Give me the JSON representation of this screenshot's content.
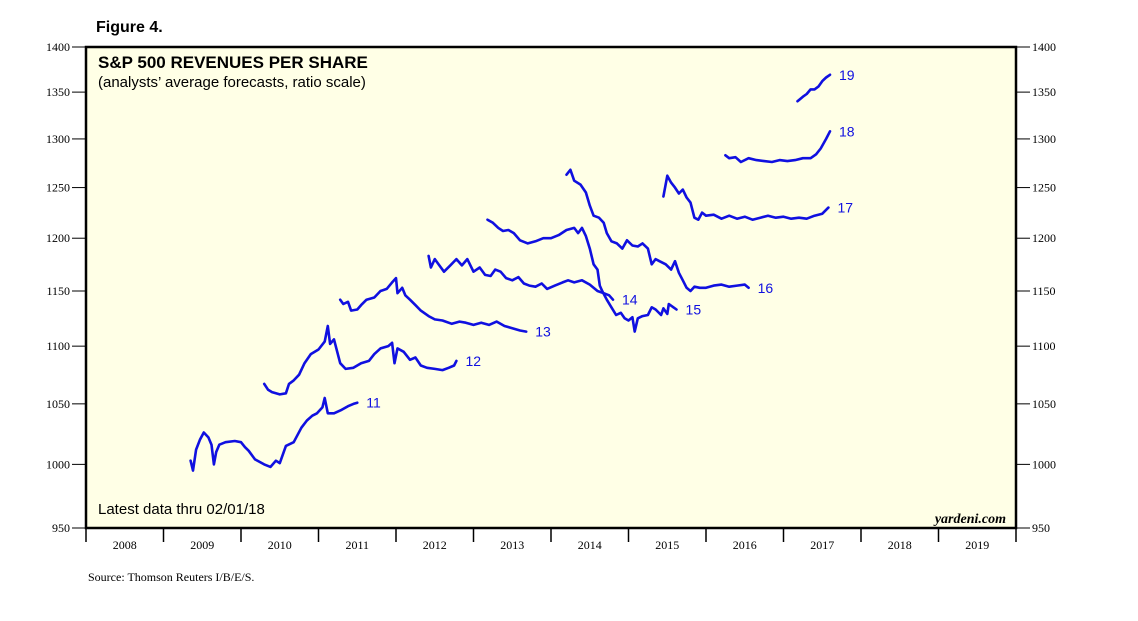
{
  "figure_label": "Figure 4.",
  "source_note": "Source: Thomson Reuters I/B/E/S.",
  "watermark": "yardeni.com",
  "colors": {
    "plot_bg": "#ffffe6",
    "series": "#1010e0",
    "axis": "#000000"
  },
  "chart_data": {
    "type": "line",
    "title": "S&P 500 REVENUES PER SHARE",
    "subtitle": "(analysts’ average forecasts, ratio scale)",
    "annotation": "Latest data thru 02/01/18",
    "y_scale": "log",
    "ylim": [
      950,
      1400
    ],
    "y_ticks": [
      950,
      1000,
      1050,
      1100,
      1150,
      1200,
      1250,
      1300,
      1350,
      1400
    ],
    "xlim": [
      2008.0,
      2020.0
    ],
    "x_labels": [
      "2008",
      "2009",
      "2010",
      "2011",
      "2012",
      "2013",
      "2014",
      "2015",
      "2016",
      "2017",
      "2018",
      "2019"
    ],
    "series": [
      {
        "name": "11",
        "points": [
          [
            2009.35,
            1003
          ],
          [
            2009.38,
            995
          ],
          [
            2009.42,
            1012
          ],
          [
            2009.47,
            1020
          ],
          [
            2009.52,
            1026
          ],
          [
            2009.58,
            1022
          ],
          [
            2009.62,
            1016
          ],
          [
            2009.65,
            1000
          ],
          [
            2009.68,
            1010
          ],
          [
            2009.72,
            1016
          ],
          [
            2009.8,
            1018
          ],
          [
            2009.92,
            1019
          ],
          [
            2010.0,
            1018
          ],
          [
            2010.05,
            1014
          ],
          [
            2010.1,
            1011
          ],
          [
            2010.18,
            1004
          ],
          [
            2010.3,
            1000
          ],
          [
            2010.38,
            998
          ],
          [
            2010.45,
            1003
          ],
          [
            2010.5,
            1001
          ],
          [
            2010.58,
            1015
          ],
          [
            2010.68,
            1018
          ],
          [
            2010.78,
            1030
          ],
          [
            2010.85,
            1036
          ],
          [
            2010.92,
            1040
          ],
          [
            2010.98,
            1042
          ],
          [
            2011.05,
            1047
          ],
          [
            2011.08,
            1055
          ],
          [
            2011.12,
            1042
          ],
          [
            2011.2,
            1042
          ],
          [
            2011.3,
            1045
          ],
          [
            2011.38,
            1048
          ],
          [
            2011.45,
            1050
          ],
          [
            2011.5,
            1051
          ]
        ]
      },
      {
        "name": "12",
        "points": [
          [
            2010.3,
            1067
          ],
          [
            2010.35,
            1062
          ],
          [
            2010.4,
            1060
          ],
          [
            2010.5,
            1058
          ],
          [
            2010.58,
            1059
          ],
          [
            2010.62,
            1067
          ],
          [
            2010.68,
            1070
          ],
          [
            2010.75,
            1075
          ],
          [
            2010.82,
            1085
          ],
          [
            2010.9,
            1093
          ],
          [
            2011.0,
            1097
          ],
          [
            2011.08,
            1104
          ],
          [
            2011.12,
            1118
          ],
          [
            2011.15,
            1102
          ],
          [
            2011.2,
            1106
          ],
          [
            2011.28,
            1085
          ],
          [
            2011.35,
            1080
          ],
          [
            2011.45,
            1081
          ],
          [
            2011.55,
            1085
          ],
          [
            2011.65,
            1087
          ],
          [
            2011.72,
            1093
          ],
          [
            2011.8,
            1098
          ],
          [
            2011.9,
            1100
          ],
          [
            2011.95,
            1103
          ],
          [
            2011.98,
            1085
          ],
          [
            2012.02,
            1098
          ],
          [
            2012.1,
            1095
          ],
          [
            2012.18,
            1088
          ],
          [
            2012.25,
            1090
          ],
          [
            2012.32,
            1083
          ],
          [
            2012.4,
            1081
          ],
          [
            2012.5,
            1080
          ],
          [
            2012.6,
            1079
          ],
          [
            2012.68,
            1081
          ],
          [
            2012.75,
            1083
          ],
          [
            2012.78,
            1087
          ]
        ]
      },
      {
        "name": "13",
        "points": [
          [
            2011.28,
            1142
          ],
          [
            2011.32,
            1138
          ],
          [
            2011.38,
            1140
          ],
          [
            2011.42,
            1132
          ],
          [
            2011.5,
            1133
          ],
          [
            2011.55,
            1137
          ],
          [
            2011.62,
            1142
          ],
          [
            2011.72,
            1144
          ],
          [
            2011.8,
            1150
          ],
          [
            2011.88,
            1152
          ],
          [
            2011.95,
            1158
          ],
          [
            2012.0,
            1162
          ],
          [
            2012.02,
            1148
          ],
          [
            2012.08,
            1153
          ],
          [
            2012.12,
            1146
          ],
          [
            2012.18,
            1142
          ],
          [
            2012.25,
            1137
          ],
          [
            2012.32,
            1132
          ],
          [
            2012.42,
            1127
          ],
          [
            2012.5,
            1124
          ],
          [
            2012.6,
            1123
          ],
          [
            2012.72,
            1120
          ],
          [
            2012.82,
            1122
          ],
          [
            2012.9,
            1121
          ],
          [
            2013.0,
            1119
          ],
          [
            2013.1,
            1121
          ],
          [
            2013.2,
            1119
          ],
          [
            2013.3,
            1122
          ],
          [
            2013.4,
            1118
          ],
          [
            2013.5,
            1116
          ],
          [
            2013.6,
            1114
          ],
          [
            2013.68,
            1113
          ]
        ]
      },
      {
        "name": "14",
        "points": [
          [
            2012.42,
            1183
          ],
          [
            2012.45,
            1172
          ],
          [
            2012.5,
            1180
          ],
          [
            2012.58,
            1172
          ],
          [
            2012.62,
            1168
          ],
          [
            2012.7,
            1174
          ],
          [
            2012.78,
            1180
          ],
          [
            2012.85,
            1174
          ],
          [
            2012.92,
            1180
          ],
          [
            2013.0,
            1168
          ],
          [
            2013.08,
            1172
          ],
          [
            2013.15,
            1165
          ],
          [
            2013.22,
            1164
          ],
          [
            2013.28,
            1170
          ],
          [
            2013.35,
            1168
          ],
          [
            2013.42,
            1162
          ],
          [
            2013.5,
            1160
          ],
          [
            2013.58,
            1163
          ],
          [
            2013.65,
            1157
          ],
          [
            2013.72,
            1155
          ],
          [
            2013.8,
            1154
          ],
          [
            2013.88,
            1157
          ],
          [
            2013.95,
            1152
          ],
          [
            2014.05,
            1155
          ],
          [
            2014.15,
            1158
          ],
          [
            2014.22,
            1160
          ],
          [
            2014.3,
            1158
          ],
          [
            2014.4,
            1160
          ],
          [
            2014.5,
            1156
          ],
          [
            2014.6,
            1150
          ],
          [
            2014.68,
            1148
          ],
          [
            2014.75,
            1146
          ],
          [
            2014.8,
            1142
          ]
        ]
      },
      {
        "name": "15",
        "points": [
          [
            2013.18,
            1218
          ],
          [
            2013.25,
            1215
          ],
          [
            2013.32,
            1210
          ],
          [
            2013.38,
            1207
          ],
          [
            2013.45,
            1208
          ],
          [
            2013.52,
            1205
          ],
          [
            2013.6,
            1198
          ],
          [
            2013.7,
            1195
          ],
          [
            2013.8,
            1197
          ],
          [
            2013.9,
            1200
          ],
          [
            2014.0,
            1200
          ],
          [
            2014.1,
            1203
          ],
          [
            2014.2,
            1208
          ],
          [
            2014.3,
            1210
          ],
          [
            2014.35,
            1205
          ],
          [
            2014.4,
            1210
          ],
          [
            2014.45,
            1202
          ],
          [
            2014.5,
            1190
          ],
          [
            2014.55,
            1175
          ],
          [
            2014.6,
            1170
          ],
          [
            2014.63,
            1155
          ],
          [
            2014.66,
            1150
          ],
          [
            2014.72,
            1142
          ],
          [
            2014.78,
            1135
          ],
          [
            2014.84,
            1128
          ],
          [
            2014.9,
            1130
          ],
          [
            2014.95,
            1125
          ],
          [
            2015.0,
            1123
          ],
          [
            2015.05,
            1126
          ],
          [
            2015.08,
            1113
          ],
          [
            2015.12,
            1125
          ],
          [
            2015.18,
            1127
          ],
          [
            2015.25,
            1128
          ],
          [
            2015.3,
            1135
          ],
          [
            2015.35,
            1133
          ],
          [
            2015.42,
            1128
          ],
          [
            2015.45,
            1134
          ],
          [
            2015.5,
            1129
          ],
          [
            2015.52,
            1138
          ],
          [
            2015.58,
            1135
          ],
          [
            2015.62,
            1133
          ]
        ]
      },
      {
        "name": "16",
        "points": [
          [
            2014.2,
            1263
          ],
          [
            2014.25,
            1268
          ],
          [
            2014.3,
            1257
          ],
          [
            2014.38,
            1253
          ],
          [
            2014.45,
            1245
          ],
          [
            2014.5,
            1232
          ],
          [
            2014.55,
            1222
          ],
          [
            2014.62,
            1220
          ],
          [
            2014.68,
            1215
          ],
          [
            2014.72,
            1205
          ],
          [
            2014.78,
            1197
          ],
          [
            2014.85,
            1195
          ],
          [
            2014.92,
            1190
          ],
          [
            2014.98,
            1198
          ],
          [
            2015.05,
            1193
          ],
          [
            2015.12,
            1192
          ],
          [
            2015.18,
            1195
          ],
          [
            2015.25,
            1190
          ],
          [
            2015.3,
            1175
          ],
          [
            2015.35,
            1180
          ],
          [
            2015.4,
            1178
          ],
          [
            2015.48,
            1175
          ],
          [
            2015.55,
            1170
          ],
          [
            2015.6,
            1178
          ],
          [
            2015.65,
            1167
          ],
          [
            2015.7,
            1160
          ],
          [
            2015.75,
            1153
          ],
          [
            2015.8,
            1150
          ],
          [
            2015.85,
            1154
          ],
          [
            2015.92,
            1153
          ],
          [
            2016.0,
            1153
          ],
          [
            2016.1,
            1155
          ],
          [
            2016.2,
            1156
          ],
          [
            2016.3,
            1154
          ],
          [
            2016.4,
            1155
          ],
          [
            2016.5,
            1156
          ],
          [
            2016.55,
            1153
          ]
        ]
      },
      {
        "name": "17",
        "points": [
          [
            2015.45,
            1241
          ],
          [
            2015.5,
            1262
          ],
          [
            2015.55,
            1255
          ],
          [
            2015.6,
            1250
          ],
          [
            2015.65,
            1244
          ],
          [
            2015.7,
            1248
          ],
          [
            2015.75,
            1240
          ],
          [
            2015.8,
            1235
          ],
          [
            2015.85,
            1220
          ],
          [
            2015.9,
            1218
          ],
          [
            2015.95,
            1225
          ],
          [
            2016.0,
            1222
          ],
          [
            2016.1,
            1223
          ],
          [
            2016.2,
            1219
          ],
          [
            2016.3,
            1222
          ],
          [
            2016.4,
            1219
          ],
          [
            2016.5,
            1221
          ],
          [
            2016.6,
            1218
          ],
          [
            2016.7,
            1220
          ],
          [
            2016.8,
            1222
          ],
          [
            2016.9,
            1220
          ],
          [
            2017.0,
            1221
          ],
          [
            2017.1,
            1219
          ],
          [
            2017.2,
            1220
          ],
          [
            2017.3,
            1219
          ],
          [
            2017.4,
            1222
          ],
          [
            2017.5,
            1224
          ],
          [
            2017.58,
            1230
          ]
        ]
      },
      {
        "name": "18",
        "points": [
          [
            2016.25,
            1283
          ],
          [
            2016.3,
            1280
          ],
          [
            2016.38,
            1281
          ],
          [
            2016.45,
            1276
          ],
          [
            2016.55,
            1280
          ],
          [
            2016.65,
            1278
          ],
          [
            2016.75,
            1277
          ],
          [
            2016.85,
            1276
          ],
          [
            2016.95,
            1278
          ],
          [
            2017.05,
            1277
          ],
          [
            2017.15,
            1278
          ],
          [
            2017.25,
            1280
          ],
          [
            2017.35,
            1280
          ],
          [
            2017.42,
            1284
          ],
          [
            2017.48,
            1290
          ],
          [
            2017.55,
            1300
          ],
          [
            2017.6,
            1308
          ]
        ]
      },
      {
        "name": "19",
        "points": [
          [
            2017.18,
            1340
          ],
          [
            2017.25,
            1345
          ],
          [
            2017.3,
            1348
          ],
          [
            2017.35,
            1353
          ],
          [
            2017.4,
            1353
          ],
          [
            2017.45,
            1356
          ],
          [
            2017.5,
            1362
          ],
          [
            2017.55,
            1366
          ],
          [
            2017.6,
            1369
          ]
        ]
      }
    ]
  }
}
